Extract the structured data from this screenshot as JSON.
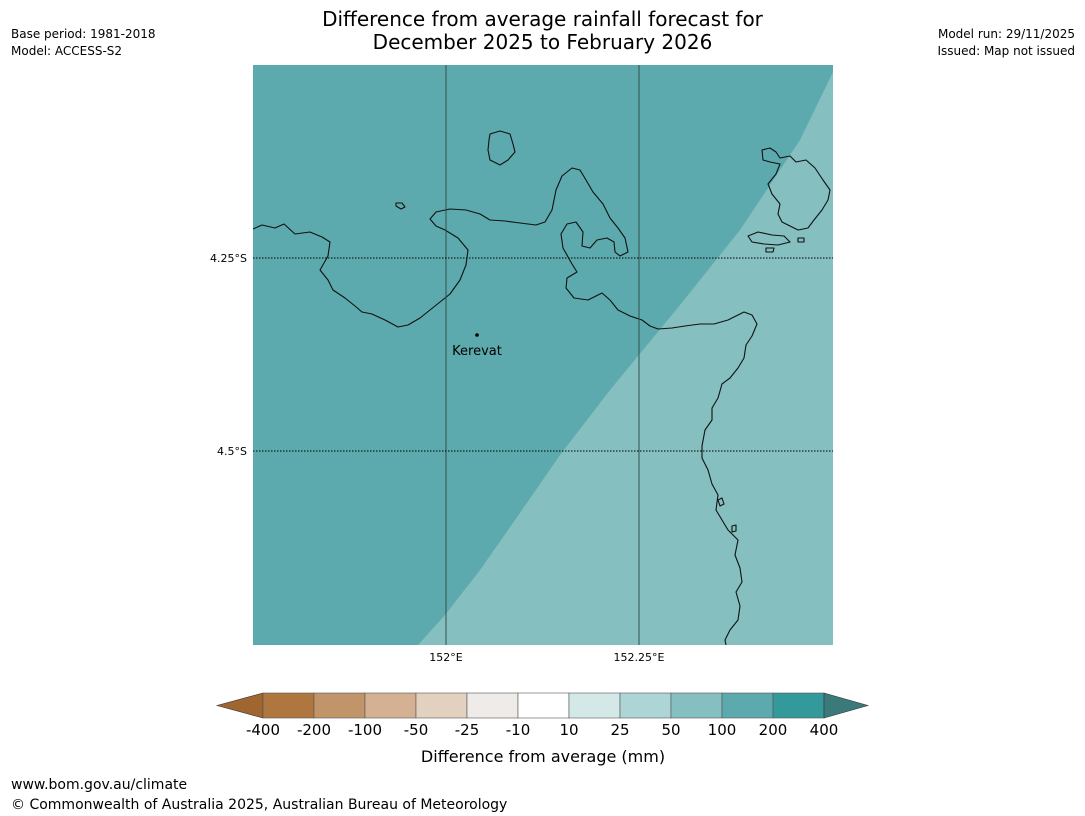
{
  "header": {
    "base_period": "Base period: 1981-2018",
    "model": "Model: ACCESS-S2",
    "model_run": "Model run: 29/11/2025",
    "issued": "Issued: Map not issued"
  },
  "title": {
    "line1": "Difference from average rainfall forecast for",
    "line2": "December 2025 to February 2026"
  },
  "map": {
    "latitude_labels": [
      "4.25°S",
      "4.5°S"
    ],
    "longitude_labels": [
      "152°E",
      "152.25°E"
    ],
    "places": [
      {
        "name": "Kerevat"
      }
    ],
    "regions": [
      {
        "name": "west",
        "category": "100 to 200",
        "color": "#5caaad"
      },
      {
        "name": "east",
        "category": "50 to 100",
        "color": "#85bfbf"
      }
    ]
  },
  "legend": {
    "title": "Difference from average (mm)",
    "tick_labels": [
      "-400",
      "-200",
      "-100",
      "-50",
      "-25",
      "-10",
      "10",
      "25",
      "50",
      "100",
      "200",
      "400"
    ],
    "colors": [
      "#9f6630",
      "#b0763f",
      "#c29469",
      "#d3b192",
      "#e3d1c0",
      "#eeebe8",
      "#ffffff",
      "#d5e8e8",
      "#aed5d5",
      "#85bfbf",
      "#5caaad",
      "#33999a",
      "#3b7a7a"
    ]
  },
  "footer": {
    "url": "www.bom.gov.au/climate",
    "copyright": "© Commonwealth of Australia 2025, Australian Bureau of Meteorology"
  }
}
